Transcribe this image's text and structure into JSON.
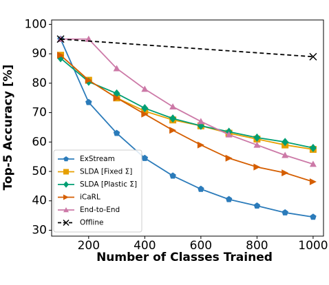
{
  "chart_data": {
    "type": "line",
    "x_label": "Number of Classes Trained",
    "y_label": "Top-5 Accuracy [%]",
    "x": [
      100,
      200,
      300,
      400,
      500,
      600,
      700,
      800,
      900,
      1000
    ],
    "xlim": [
      68,
      1037
    ],
    "xticks": [
      200,
      400,
      600,
      800,
      1000
    ],
    "ylim": [
      28,
      101.5
    ],
    "yticks": [
      30,
      40,
      50,
      60,
      70,
      80,
      90,
      100
    ],
    "legend": "lower left",
    "series": [
      {
        "name": "ExStream",
        "color": "#2b7bba",
        "marker": "pentagon",
        "values": [
          95,
          73.5,
          63,
          54.5,
          48.5,
          44,
          40.5,
          38.3,
          36,
          34.5
        ]
      },
      {
        "name": "SLDA [Fixed Σ]",
        "color": "#e69f00",
        "marker": "square",
        "values": [
          89.5,
          81,
          75,
          70.5,
          67.5,
          65.5,
          63,
          61,
          59,
          57.5
        ]
      },
      {
        "name": "SLDA [Plastic Σ]",
        "color": "#009e73",
        "marker": "diamond",
        "values": [
          88.5,
          80.5,
          76.5,
          71.5,
          68,
          65.5,
          63.5,
          61.5,
          60,
          58
        ]
      },
      {
        "name": "iCaRL",
        "color": "#d55e00",
        "marker": "triangle-right",
        "values": [
          89.5,
          81,
          75,
          69.5,
          64,
          59,
          54.5,
          51.5,
          49.5,
          46.5
        ]
      },
      {
        "name": "End-to-End",
        "color": "#cc79a7",
        "marker": "triangle-up",
        "values": [
          95,
          95,
          85,
          78,
          72,
          67,
          62.5,
          59,
          55.5,
          52.5
        ]
      },
      {
        "name": "Offline",
        "color": "#000000",
        "marker": "x",
        "dashed": true,
        "x": [
          100,
          1000
        ],
        "values": [
          95,
          89
        ]
      }
    ]
  }
}
